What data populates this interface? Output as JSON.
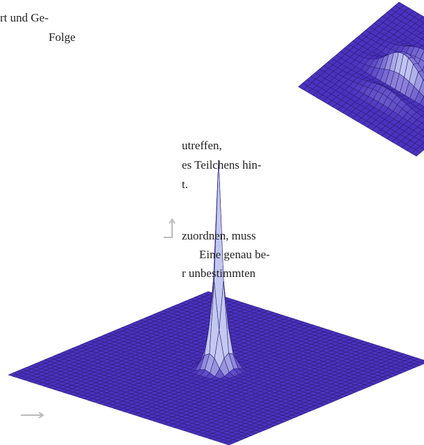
{
  "text_top": {
    "lines": [
      "rt und Ge-",
      "Folge"
    ]
  },
  "text_middle": {
    "lines": [
      "utreffen,",
      "es Teilchens hin-",
      "t."
    ]
  },
  "text_bottom": {
    "lines": [
      "zuordnen, muss",
      "Eine genau be-",
      "r unbestimmten"
    ]
  }
}
